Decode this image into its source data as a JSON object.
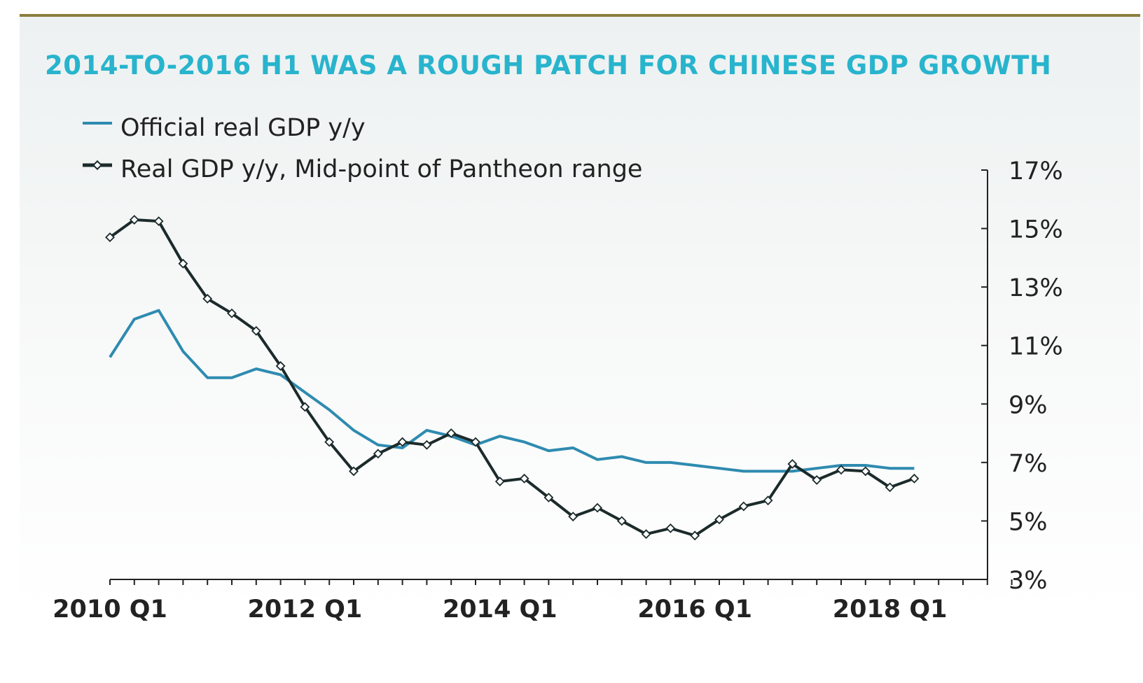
{
  "chart_data": {
    "type": "line",
    "title": "2014-TO-2016 H1 WAS A ROUGH PATCH FOR CHINESE GDP GROWTH",
    "xlabel": "",
    "ylabel": "",
    "ylim": [
      3,
      17
    ],
    "y_ticks": [
      "17%",
      "15%",
      "13%",
      "11%",
      "9%",
      "7%",
      "5%",
      "3%"
    ],
    "y_tick_values": [
      17,
      15,
      13,
      11,
      9,
      7,
      5,
      3
    ],
    "y_axis_side": "right",
    "x_ticks": [
      "2010 Q1",
      "2012 Q1",
      "2014 Q1",
      "2016 Q1",
      "2018 Q1"
    ],
    "x_tick_index": [
      0,
      8,
      16,
      24,
      32
    ],
    "x_slots": 38,
    "series": [
      {
        "name": "Official real GDP y/y",
        "color": "#2e8bb0",
        "marker": "none",
        "values": [
          10.6,
          11.9,
          12.2,
          10.8,
          9.9,
          9.9,
          10.2,
          10.0,
          9.4,
          8.8,
          8.1,
          7.6,
          7.5,
          8.1,
          7.9,
          7.6,
          7.9,
          7.7,
          7.4,
          7.5,
          7.1,
          7.2,
          7.0,
          7.0,
          6.9,
          6.8,
          6.7,
          6.7,
          6.7,
          6.8,
          6.9,
          6.9,
          6.8,
          6.8
        ]
      },
      {
        "name": "Real GDP y/y, Mid-point of Pantheon range",
        "color": "#1b2a2a",
        "marker": "diamond",
        "values": [
          14.7,
          15.3,
          15.25,
          13.8,
          12.6,
          12.1,
          11.5,
          10.3,
          8.9,
          7.7,
          6.7,
          7.3,
          7.7,
          7.6,
          8.0,
          7.7,
          6.35,
          6.45,
          5.8,
          5.15,
          5.45,
          5.0,
          4.55,
          4.75,
          4.5,
          5.05,
          5.5,
          5.7,
          6.95,
          6.4,
          6.75,
          6.7,
          6.15,
          6.45
        ]
      }
    ],
    "legend_position": "top-left"
  }
}
